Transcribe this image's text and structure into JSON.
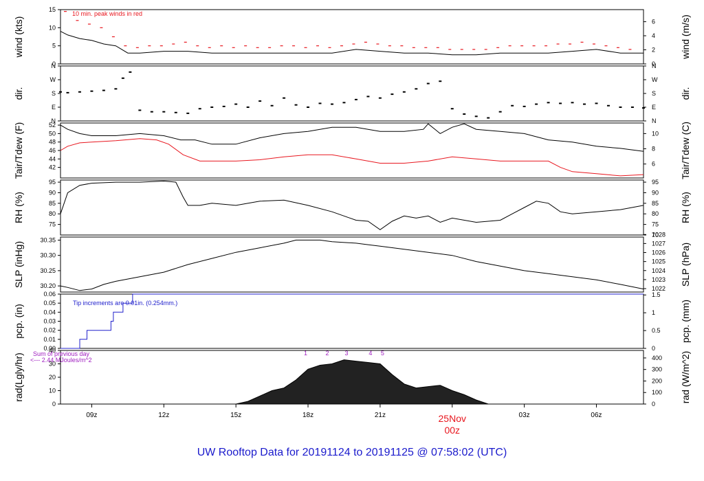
{
  "title": "UW Rooftop Data for 20191124  to  20191125 @ 07:58:02  (UTC)",
  "colors": {
    "title": "#1a1acc",
    "red": "#e8161e",
    "blue": "#2020cc",
    "purple": "#a020c0",
    "black": "#000000"
  },
  "time_axis": {
    "range_hours": [
      7.7,
      31.96
    ],
    "ticks": [
      {
        "hour": 9,
        "label": "09z"
      },
      {
        "hour": 12,
        "label": "12z"
      },
      {
        "hour": 15,
        "label": "15z"
      },
      {
        "hour": 18,
        "label": "18z"
      },
      {
        "hour": 21,
        "label": "21z"
      },
      {
        "hour": 24,
        "label": "00z",
        "date_label": "25Nov",
        "highlight": true
      },
      {
        "hour": 27,
        "label": "03z"
      },
      {
        "hour": 30,
        "label": "06z"
      }
    ]
  },
  "chart_data": [
    {
      "id": "wind",
      "type": "line",
      "ylabel_left": "wind (kts)",
      "ylabel_right": "wind (m/s)",
      "ylim": [
        0,
        15
      ],
      "yticks_left": [
        0,
        5,
        10,
        15
      ],
      "yticks_right": [
        {
          "value": 0,
          "label": "0"
        },
        {
          "value": 3.89,
          "label": "2"
        },
        {
          "value": 7.78,
          "label": "4"
        },
        {
          "value": 11.66,
          "label": "6"
        }
      ],
      "annotation": "10 min. peak winds in red",
      "series": [
        {
          "name": "wind",
          "color": "#000000",
          "x": [
            7.7,
            8.0,
            8.5,
            9.0,
            9.5,
            10.0,
            10.5,
            11.0,
            12.0,
            13.0,
            14.0,
            15.0,
            16.0,
            17.0,
            18.0,
            19.0,
            20.0,
            21.0,
            22.0,
            23.0,
            24.0,
            25.0,
            26.0,
            27.0,
            28.0,
            29.0,
            30.0,
            31.0,
            31.96
          ],
          "values": [
            9,
            8,
            7,
            6.5,
            5.5,
            5,
            3,
            3,
            3.5,
            3.5,
            3,
            3,
            3,
            3,
            3,
            3,
            4,
            3.5,
            3,
            3,
            2.5,
            2.5,
            3,
            3,
            3,
            3.5,
            4,
            3,
            3
          ]
        },
        {
          "name": "10 min. peak winds",
          "color": "#e8161e",
          "x": [
            7.9,
            8.4,
            8.9,
            9.4,
            9.9,
            10.4,
            10.9,
            11.4,
            11.9,
            12.4,
            12.9,
            13.4,
            13.9,
            14.4,
            14.9,
            15.4,
            15.9,
            16.4,
            16.9,
            17.4,
            17.9,
            18.4,
            18.9,
            19.4,
            19.9,
            20.4,
            20.9,
            21.4,
            21.9,
            22.4,
            22.9,
            23.4,
            23.9,
            24.4,
            24.9,
            25.4,
            25.9,
            26.4,
            26.9,
            27.4,
            27.9,
            28.4,
            28.9,
            29.4,
            29.9,
            30.4,
            30.9,
            31.4
          ],
          "values": [
            14.5,
            12,
            11,
            10,
            7.5,
            5,
            4.5,
            5,
            5,
            5.5,
            6,
            5,
            4.5,
            5,
            4.5,
            5,
            4.5,
            4.5,
            5,
            5,
            4.5,
            5,
            4.5,
            5,
            5.5,
            6,
            5.5,
            5,
            5,
            4.5,
            4.5,
            4.5,
            4,
            4,
            4,
            4,
            4.5,
            5,
            5,
            5,
            5,
            5.5,
            5.5,
            6,
            5.5,
            5,
            4.5,
            4
          ]
        }
      ]
    },
    {
      "id": "dir",
      "type": "scatter",
      "ylabel_left": "dir.",
      "ylabel_right": "dir.",
      "ylim": [
        0,
        360
      ],
      "yticks_left": [
        {
          "value": 0,
          "label": "N"
        },
        {
          "value": 90,
          "label": "E"
        },
        {
          "value": 180,
          "label": "S"
        },
        {
          "value": 270,
          "label": "W"
        },
        {
          "value": 360,
          "label": "N"
        }
      ],
      "yticks_right": [
        {
          "value": 0,
          "label": "N"
        },
        {
          "value": 90,
          "label": "E"
        },
        {
          "value": 180,
          "label": "S"
        },
        {
          "value": 270,
          "label": "W"
        },
        {
          "value": 360,
          "label": "N"
        }
      ],
      "series": [
        {
          "name": "direction",
          "color": "#000000",
          "x": [
            7.7,
            8.0,
            8.5,
            9.0,
            9.5,
            10.0,
            10.3,
            10.6,
            11.0,
            11.5,
            12.0,
            12.5,
            13.0,
            13.5,
            14.0,
            14.5,
            15.0,
            15.5,
            16.0,
            16.5,
            17.0,
            17.5,
            18.0,
            18.5,
            19.0,
            19.5,
            20.0,
            20.5,
            21.0,
            21.5,
            22.0,
            22.5,
            23.0,
            23.5,
            24.0,
            24.5,
            25.0,
            25.5,
            26.0,
            26.5,
            27.0,
            27.5,
            28.0,
            28.5,
            29.0,
            29.5,
            30.0,
            30.5,
            31.0,
            31.5,
            31.96
          ],
          "values": [
            190,
            185,
            190,
            195,
            200,
            210,
            280,
            320,
            70,
            60,
            60,
            55,
            50,
            80,
            90,
            95,
            110,
            90,
            130,
            100,
            150,
            105,
            90,
            115,
            110,
            120,
            140,
            160,
            150,
            175,
            190,
            210,
            245,
            260,
            80,
            45,
            30,
            20,
            60,
            100,
            95,
            110,
            120,
            115,
            120,
            110,
            115,
            100,
            90,
            90,
            85
          ]
        }
      ]
    },
    {
      "id": "temp",
      "type": "line",
      "ylabel_left": "Tair/Tdew (F)",
      "ylabel_right": "Tair/Tdew (C)",
      "ylim": [
        39.5,
        52.5
      ],
      "yticks_left": [
        42,
        44,
        46,
        48,
        50,
        52
      ],
      "yticks_right": [
        {
          "value": 42.8,
          "label": "6"
        },
        {
          "value": 46.4,
          "label": "8"
        },
        {
          "value": 50.0,
          "label": "10"
        }
      ],
      "series": [
        {
          "name": "Tair",
          "color": "#000000",
          "x": [
            7.7,
            8.0,
            8.5,
            9.0,
            10.0,
            11.0,
            12.0,
            12.7,
            13.3,
            14.0,
            15.0,
            16.0,
            17.0,
            18.0,
            19.0,
            20.0,
            21.0,
            22.0,
            22.8,
            23.0,
            23.5,
            24.0,
            24.5,
            25.0,
            26.0,
            27.0,
            28.0,
            29.0,
            30.0,
            31.0,
            31.96
          ],
          "values": [
            52,
            51,
            50,
            49.5,
            49.5,
            50,
            49.5,
            48.5,
            48.5,
            47.5,
            47.5,
            49,
            50,
            50.5,
            51.5,
            51.5,
            50.5,
            50.5,
            51,
            52.3,
            50,
            51.5,
            52.3,
            51,
            50.5,
            50,
            48.5,
            48,
            47,
            46.5,
            45.8
          ]
        },
        {
          "name": "Tdew",
          "color": "#e8161e",
          "x": [
            7.7,
            8.0,
            8.5,
            9.0,
            10.0,
            11.0,
            11.7,
            12.2,
            12.8,
            13.5,
            14.0,
            15.0,
            16.0,
            17.0,
            18.0,
            19.0,
            20.0,
            21.0,
            22.0,
            23.0,
            24.0,
            25.0,
            26.0,
            27.0,
            28.0,
            28.5,
            29.0,
            30.0,
            31.0,
            31.96
          ],
          "values": [
            46,
            47,
            47.8,
            48,
            48.3,
            48.8,
            48.5,
            47.5,
            45,
            43.5,
            43.5,
            43.5,
            43.8,
            44.5,
            45,
            45,
            44,
            43,
            43,
            43.5,
            44.5,
            44,
            43.5,
            43.5,
            43.5,
            42,
            41,
            40.5,
            40,
            40.3
          ]
        }
      ]
    },
    {
      "id": "rh",
      "type": "line",
      "ylabel_left": "RH (%)",
      "ylabel_right": "RH (%)",
      "ylim": [
        70,
        96
      ],
      "yticks_left": [
        75,
        80,
        85,
        90,
        95
      ],
      "yticks_right": [
        {
          "value": 70,
          "label": "70"
        },
        {
          "value": 75,
          "label": "75"
        },
        {
          "value": 80,
          "label": "80"
        },
        {
          "value": 85,
          "label": "85"
        },
        {
          "value": 90,
          "label": "90"
        },
        {
          "value": 95,
          "label": "95"
        }
      ],
      "series": [
        {
          "name": "RH",
          "color": "#000000",
          "x": [
            7.7,
            8.0,
            8.5,
            9.0,
            10.0,
            11.0,
            12.0,
            12.5,
            12.8,
            13.0,
            13.5,
            14.0,
            15.0,
            16.0,
            17.0,
            18.0,
            19.0,
            20.0,
            20.5,
            21.0,
            21.5,
            22.0,
            22.5,
            23.0,
            23.5,
            24.0,
            25.0,
            26.0,
            26.5,
            27.0,
            27.5,
            28.0,
            28.5,
            29.0,
            30.0,
            31.0,
            31.96
          ],
          "values": [
            80,
            90,
            93.5,
            94.5,
            95,
            95,
            95.5,
            95,
            88,
            84,
            84,
            85,
            84,
            86,
            86.5,
            84,
            81,
            77,
            76.5,
            72.5,
            76.5,
            79,
            78,
            79,
            76,
            78,
            76,
            77,
            80,
            83,
            86,
            85,
            81,
            80,
            81,
            82,
            84
          ]
        }
      ]
    },
    {
      "id": "slp",
      "type": "line",
      "ylabel_left": "SLP (inHg)",
      "ylabel_right": "SLP (hPa)",
      "ylim": [
        30.18,
        30.36
      ],
      "yticks_left": [
        {
          "value": 30.2,
          "label": "30.20"
        },
        {
          "value": 30.25,
          "label": "30.25"
        },
        {
          "value": 30.3,
          "label": "30.30"
        },
        {
          "value": 30.35,
          "label": "30.35"
        }
      ],
      "yticks_right": [
        {
          "value": 30.1912,
          "label": "1022"
        },
        {
          "value": 30.2207,
          "label": "1023"
        },
        {
          "value": 30.2503,
          "label": "1024"
        },
        {
          "value": 30.2798,
          "label": "1025"
        },
        {
          "value": 30.3093,
          "label": "1026"
        },
        {
          "value": 30.3389,
          "label": "1027"
        },
        {
          "value": 30.3684,
          "label": "1028"
        }
      ],
      "series": [
        {
          "name": "SLP",
          "color": "#000000",
          "x": [
            7.7,
            8.0,
            8.5,
            9.0,
            9.5,
            10.0,
            11.0,
            12.0,
            13.0,
            14.0,
            15.0,
            16.0,
            17.0,
            17.5,
            18.0,
            18.5,
            19.0,
            20.0,
            20.5,
            21.0,
            22.0,
            23.0,
            24.0,
            25.0,
            26.0,
            27.0,
            28.0,
            29.0,
            30.0,
            31.0,
            31.96
          ],
          "values": [
            30.2,
            30.195,
            30.185,
            30.19,
            30.205,
            30.215,
            30.23,
            30.245,
            30.27,
            30.29,
            30.31,
            30.325,
            30.34,
            30.35,
            30.35,
            30.35,
            30.345,
            30.34,
            30.335,
            30.33,
            30.32,
            30.31,
            30.3,
            30.28,
            30.265,
            30.25,
            30.24,
            30.23,
            30.22,
            30.205,
            30.19
          ]
        }
      ]
    },
    {
      "id": "pcp",
      "type": "line",
      "ylabel_left": "pcp. (in)",
      "ylabel_right": "pcp. (mm)",
      "ylim": [
        0,
        0.06
      ],
      "yticks_left": [
        {
          "value": 0,
          "label": "0.00"
        },
        {
          "value": 0.01,
          "label": "0.01"
        },
        {
          "value": 0.02,
          "label": "0.02"
        },
        {
          "value": 0.03,
          "label": "0.03"
        },
        {
          "value": 0.04,
          "label": "0.04"
        },
        {
          "value": 0.05,
          "label": "0.05"
        },
        {
          "value": 0.06,
          "label": "0.06"
        }
      ],
      "yticks_right": [
        {
          "value": 0,
          "label": "0"
        },
        {
          "value": 0.01969,
          "label": "0.5"
        },
        {
          "value": 0.03937,
          "label": "1"
        },
        {
          "value": 0.05906,
          "label": "1.5"
        }
      ],
      "annotation": "Tip increments are 0.01in. (0.254mm.)",
      "series": [
        {
          "name": "precipitation",
          "color": "#2020cc",
          "step": true,
          "x": [
            7.7,
            8.2,
            8.5,
            8.8,
            9.7,
            9.8,
            9.9,
            10.3,
            10.7,
            31.96
          ],
          "values": [
            0,
            0,
            0.01,
            0.02,
            0.02,
            0.03,
            0.04,
            0.05,
            0.06,
            0.06
          ]
        }
      ]
    },
    {
      "id": "rad",
      "type": "area",
      "ylabel_left": "rad(Lgly/hr)",
      "ylabel_right": "rad (W/m^2)",
      "ylim": [
        0,
        40
      ],
      "yticks_left": [
        0,
        10,
        20,
        30,
        40
      ],
      "yticks_right": [
        {
          "value": 0,
          "label": "0"
        },
        {
          "value": 8.6,
          "label": "100"
        },
        {
          "value": 17.2,
          "label": "200"
        },
        {
          "value": 25.8,
          "label": "300"
        },
        {
          "value": 34.4,
          "label": "400"
        }
      ],
      "annotation_left": [
        "Sum of previous day",
        "<--- 2.44 MJoules/m^2"
      ],
      "annotation_numbers": [
        {
          "hour": 17.9,
          "label": "1"
        },
        {
          "hour": 18.8,
          "label": "2"
        },
        {
          "hour": 19.6,
          "label": "3"
        },
        {
          "hour": 20.6,
          "label": "4"
        },
        {
          "hour": 21.1,
          "label": "5"
        }
      ],
      "series": [
        {
          "name": "radiation",
          "color": "#000000",
          "x": [
            7.7,
            15.0,
            15.5,
            16.0,
            16.5,
            17.0,
            17.5,
            18.0,
            18.5,
            19.0,
            19.5,
            20.0,
            20.5,
            21.0,
            21.5,
            22.0,
            22.5,
            23.0,
            23.5,
            24.0,
            24.5,
            25.0,
            25.5,
            31.96
          ],
          "values": [
            0,
            0,
            2,
            6,
            10,
            12,
            18,
            26,
            29,
            30,
            33,
            32,
            31,
            30,
            22,
            15,
            12,
            13,
            14,
            10,
            7,
            3,
            0,
            0
          ]
        }
      ]
    }
  ]
}
